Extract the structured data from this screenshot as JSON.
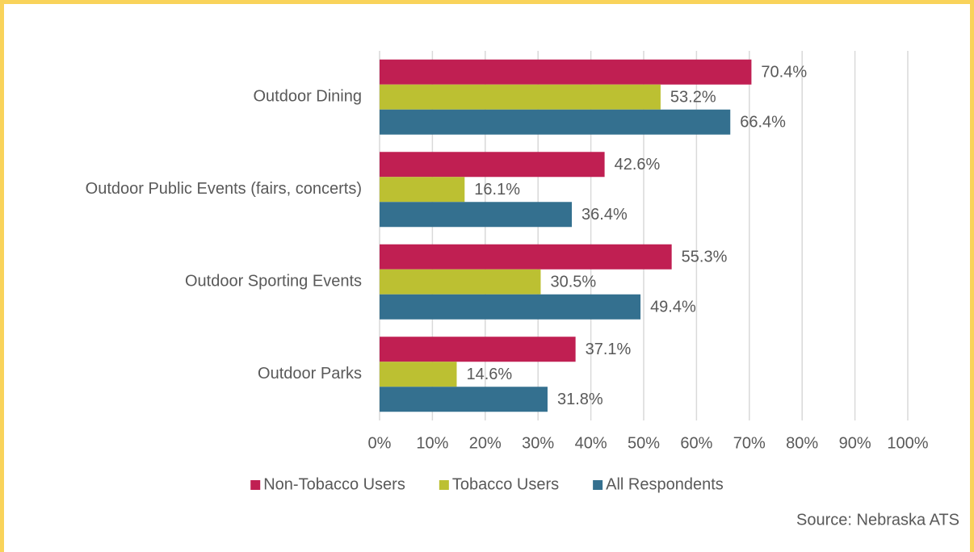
{
  "chart_data": {
    "type": "hbar",
    "categories": [
      "Outdoor Dining",
      "Outdoor Public Events (fairs, concerts)",
      "Outdoor Sporting Events",
      "Outdoor Parks"
    ],
    "series": [
      {
        "name": "Non-Tobacco Users",
        "color": "#c01f52",
        "values": [
          70.4,
          42.6,
          55.3,
          37.1
        ],
        "value_labels": [
          "70.4%",
          "42.6%",
          "55.3%",
          "37.1%"
        ]
      },
      {
        "name": "Tobacco Users",
        "color": "#bcc032",
        "values": [
          53.2,
          16.1,
          30.5,
          14.6
        ],
        "value_labels": [
          "53.2%",
          "16.1%",
          "30.5%",
          "14.6%"
        ]
      },
      {
        "name": "All Respondents",
        "color": "#34708f",
        "values": [
          66.4,
          36.4,
          49.4,
          31.8
        ],
        "value_labels": [
          "66.4%",
          "36.4%",
          "49.4%",
          "31.8%"
        ]
      }
    ],
    "xlim": [
      0,
      100
    ],
    "xticks": [
      {
        "value": 0,
        "label": "0%"
      },
      {
        "value": 10,
        "label": "10%"
      },
      {
        "value": 20,
        "label": "20%"
      },
      {
        "value": 30,
        "label": "30%"
      },
      {
        "value": 40,
        "label": "40%"
      },
      {
        "value": 50,
        "label": "50%"
      },
      {
        "value": 60,
        "label": "60%"
      },
      {
        "value": 70,
        "label": "70%"
      },
      {
        "value": 80,
        "label": "80%"
      },
      {
        "value": 90,
        "label": "90%"
      },
      {
        "value": 100,
        "label": "100%"
      }
    ],
    "grid": true,
    "legend": "bottom",
    "source": "Source: Nebraska ATS"
  }
}
